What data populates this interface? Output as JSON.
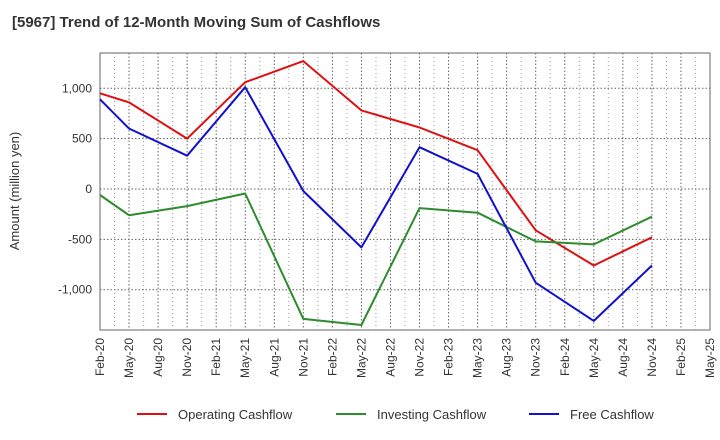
{
  "chart_data": {
    "type": "line",
    "title": "[5967]  Trend of 12-Month Moving Sum of Cashflows",
    "ylabel": "Amount (million yen)",
    "xlabel": "",
    "ylim": [
      -1400,
      1350
    ],
    "y_ticks": [
      1000,
      500,
      0,
      -500,
      -1000
    ],
    "y_tick_labels": [
      "1,000",
      "500",
      "0",
      "-500",
      "-1,000"
    ],
    "grid": true,
    "legend_position": "bottom",
    "categories": [
      "Feb-20",
      "May-20",
      "Aug-20",
      "Nov-20",
      "Feb-21",
      "May-21",
      "Aug-21",
      "Nov-21",
      "Feb-22",
      "May-22",
      "Aug-22",
      "Nov-22",
      "Feb-23",
      "May-23",
      "Aug-23",
      "Nov-23",
      "Feb-24",
      "May-24",
      "Aug-24",
      "Nov-24",
      "Feb-25",
      "May-25"
    ],
    "series": [
      {
        "name": "Operating Cashflow",
        "color": "#dd1111",
        "values": [
          950,
          860,
          null,
          500,
          null,
          1060,
          null,
          1270,
          null,
          780,
          null,
          610,
          null,
          385,
          null,
          -410,
          null,
          -760,
          null,
          -480,
          null,
          null
        ]
      },
      {
        "name": "Investing Cashflow",
        "color": "#2e8b2e",
        "values": [
          -60,
          -260,
          null,
          -170,
          null,
          -45,
          null,
          -1290,
          null,
          -1350,
          null,
          -190,
          null,
          -235,
          null,
          -520,
          null,
          -550,
          null,
          -275,
          null,
          null
        ]
      },
      {
        "name": "Free Cashflow",
        "color": "#1111cc",
        "values": [
          890,
          600,
          null,
          330,
          null,
          1010,
          null,
          -20,
          null,
          -580,
          null,
          415,
          null,
          150,
          null,
          -930,
          null,
          -1310,
          null,
          -760,
          null,
          null
        ]
      }
    ]
  }
}
